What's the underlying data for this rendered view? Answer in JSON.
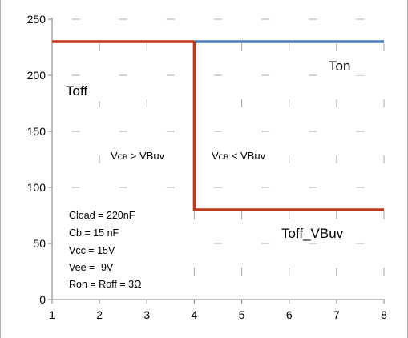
{
  "chart_data": {
    "type": "line",
    "title": "",
    "xlabel": "",
    "ylabel": "",
    "xlim": [
      1,
      8
    ],
    "ylim": [
      0,
      250
    ],
    "x_ticks": [
      1,
      2,
      3,
      4,
      5,
      6,
      7,
      8
    ],
    "y_ticks": [
      0,
      50,
      100,
      150,
      200,
      250
    ],
    "grid": "minor tick marks only",
    "series": [
      {
        "name": "Ton",
        "color": "#4a7ebb",
        "points": [
          [
            4,
            230
          ],
          [
            8,
            230
          ]
        ]
      },
      {
        "name": "Toff",
        "color": "#c0391b",
        "points": [
          [
            1,
            230
          ],
          [
            4,
            230
          ]
        ]
      },
      {
        "name": "Toff_VBuv",
        "color": "#c0391b",
        "points": [
          [
            4,
            230
          ],
          [
            4,
            80
          ],
          [
            8,
            80
          ]
        ]
      }
    ],
    "annotations": {
      "region_left": {
        "main": "V",
        "sub": "CB",
        "rest": " > VBuv"
      },
      "region_right": {
        "main": "V",
        "sub": "CB",
        "rest": " < VBuv"
      },
      "params": [
        "Cload = 220nF",
        "Cb = 15 nF",
        "Vcc = 15V",
        "Vee = -9V",
        "Ron = Roff = 3Ω"
      ]
    }
  }
}
